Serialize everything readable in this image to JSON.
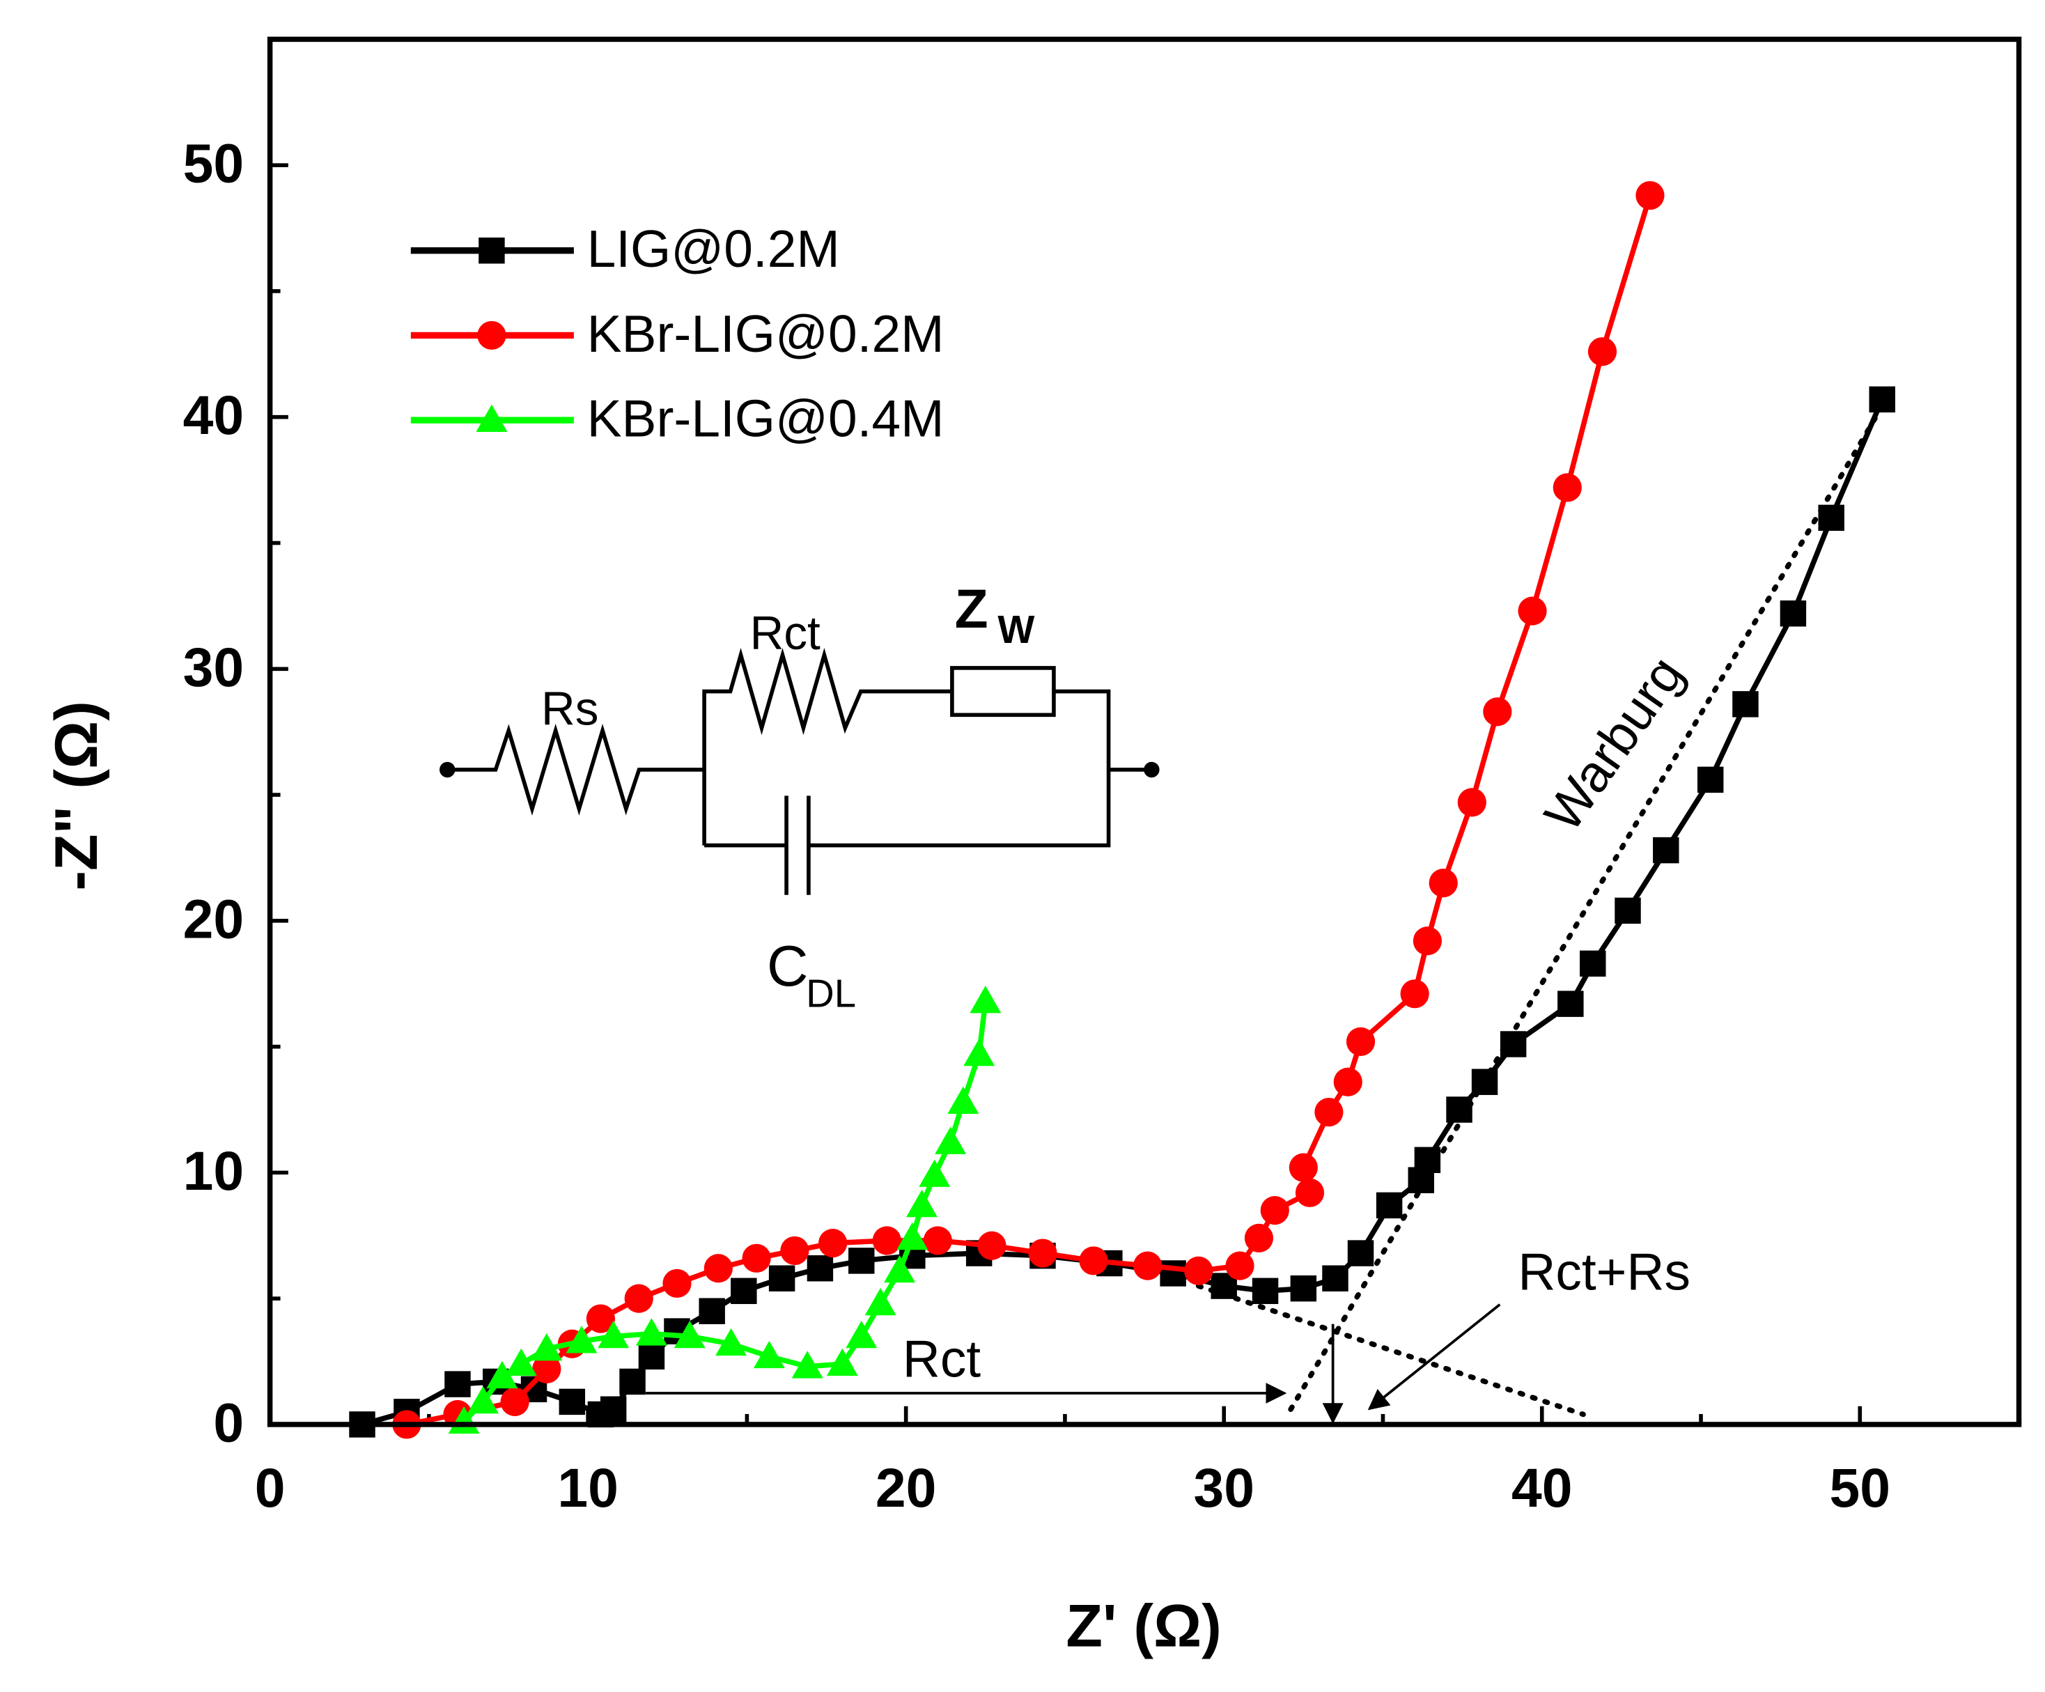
{
  "chart_data": {
    "type": "line",
    "xlabel": "Z' (Ω)",
    "ylabel": "-Z\" (Ω)",
    "xlim": [
      0,
      55
    ],
    "ylim": [
      0,
      55
    ],
    "xticks": [
      0,
      10,
      20,
      30,
      40,
      50
    ],
    "yticks": [
      0,
      10,
      20,
      30,
      40,
      50
    ],
    "minor_ticks": true,
    "grid": false,
    "legend": "upper left",
    "series": [
      {
        "name": "LIG@0.2M",
        "color": "#000000",
        "marker": "square",
        "x": [
          2.9,
          4.3,
          5.9,
          7.1,
          8.3,
          9.5,
          10.4,
          10.8,
          11.4,
          12.0,
          12.8,
          13.9,
          14.9,
          16.1,
          17.3,
          18.6,
          20.2,
          22.3,
          24.3,
          26.4,
          28.4,
          30.0,
          31.3,
          32.5,
          33.5,
          34.3,
          35.2,
          36.2,
          36.4,
          37.4,
          38.2,
          39.1,
          40.9,
          41.6,
          42.7,
          43.9,
          45.3,
          46.4,
          47.9,
          49.1,
          50.7
        ],
        "values": [
          0,
          0.5,
          1.6,
          1.7,
          1.4,
          0.9,
          0.4,
          0.6,
          1.7,
          2.7,
          3.7,
          4.5,
          5.3,
          5.8,
          6.2,
          6.5,
          6.7,
          6.8,
          6.7,
          6.4,
          6.0,
          5.5,
          5.3,
          5.4,
          5.8,
          6.8,
          8.7,
          9.7,
          10.5,
          12.5,
          13.6,
          15.1,
          16.7,
          18.3,
          20.4,
          22.8,
          25.6,
          28.6,
          32.2,
          36.0,
          40.7
        ]
      },
      {
        "name": "KBr-LIG@0.2M",
        "color": "#ff0000",
        "marker": "circle",
        "x": [
          4.3,
          5.9,
          7.7,
          8.7,
          9.5,
          10.4,
          11.6,
          12.8,
          14.1,
          15.3,
          16.5,
          17.7,
          19.4,
          21.0,
          22.7,
          24.3,
          25.9,
          27.6,
          29.2,
          30.5,
          31.1,
          31.6,
          32.7,
          32.5,
          33.3,
          33.9,
          34.3,
          36.0,
          36.4,
          36.9,
          37.8,
          38.6,
          39.7,
          40.8,
          41.9,
          43.4
        ],
        "values": [
          0,
          0.4,
          0.9,
          2.2,
          3.2,
          4.2,
          5.0,
          5.6,
          6.2,
          6.6,
          6.9,
          7.2,
          7.3,
          7.3,
          7.1,
          6.8,
          6.5,
          6.3,
          6.1,
          6.3,
          7.4,
          8.5,
          9.2,
          10.2,
          12.4,
          13.6,
          15.2,
          17.1,
          19.2,
          21.5,
          24.7,
          28.3,
          32.3,
          37.2,
          42.6,
          48.8
        ]
      },
      {
        "name": "KBr-LIG@0.4M",
        "color": "#00ff00",
        "marker": "triangle",
        "x": [
          6.1,
          6.7,
          7.3,
          7.9,
          8.7,
          9.8,
          10.8,
          12.0,
          13.2,
          14.5,
          15.7,
          16.9,
          18.0,
          18.6,
          19.2,
          19.8,
          20.2,
          20.5,
          20.9,
          21.4,
          21.8,
          22.3,
          22.5
        ],
        "values": [
          0.1,
          0.9,
          1.9,
          2.4,
          3.0,
          3.3,
          3.5,
          3.6,
          3.5,
          3.2,
          2.7,
          2.3,
          2.4,
          3.5,
          4.8,
          6.1,
          7.4,
          8.7,
          9.9,
          11.2,
          12.8,
          14.7,
          16.8
        ]
      }
    ],
    "fits": [
      {
        "x": [
          29.2,
          41.3
        ],
        "values": [
          5.5,
          0.4
        ]
      },
      {
        "x": [
          32.1,
          50.5
        ],
        "values": [
          0.6,
          40.0
        ]
      }
    ],
    "annotations": [
      "Rct",
      "Rct+Rs",
      "Warburg"
    ],
    "circuit": {
      "rs": "Rs",
      "rct": "Rct",
      "zw": "Z",
      "zw_sub": "W",
      "cdl": "C",
      "cdl_sub": "DL"
    }
  }
}
